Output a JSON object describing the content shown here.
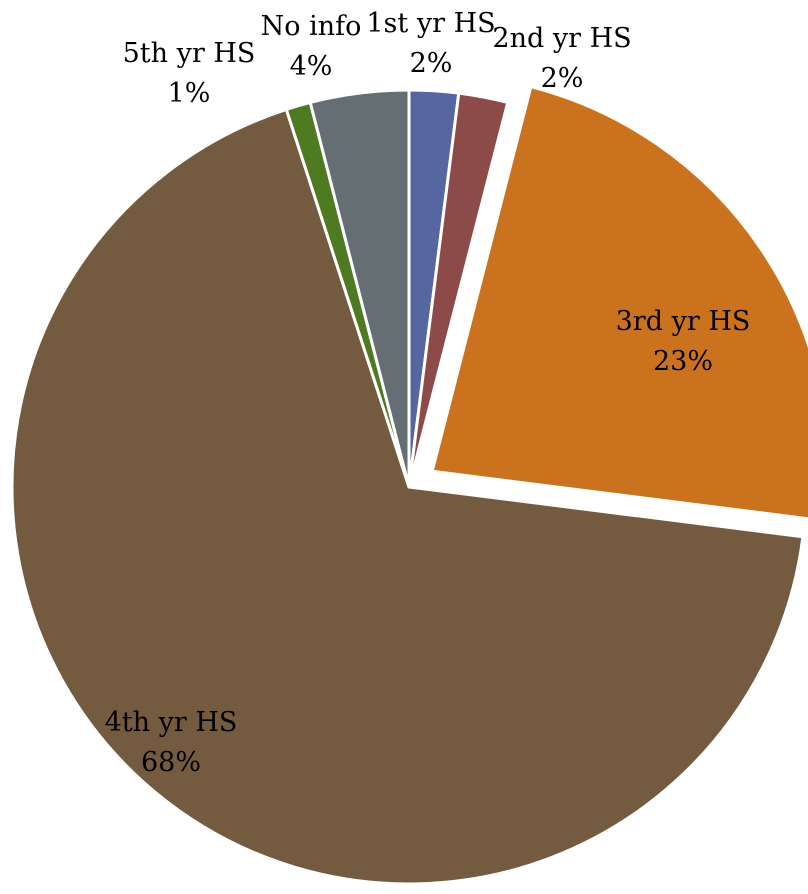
{
  "chart_data": {
    "type": "pie",
    "title": "",
    "slices": [
      {
        "label": "1st yr HS",
        "value": 2,
        "display": "2%",
        "color": "#5566A1",
        "exploded": false
      },
      {
        "label": "2nd yr HS",
        "value": 2,
        "display": "2%",
        "color": "#8C4A48",
        "exploded": false
      },
      {
        "label": "3rd yr HS",
        "value": 23,
        "display": "23%",
        "color": "#CB721E",
        "exploded": true
      },
      {
        "label": "4th yr HS",
        "value": 68,
        "display": "68%",
        "color": "#745A3F",
        "exploded": false
      },
      {
        "label": "5th yr HS",
        "value": 1,
        "display": "1%",
        "color": "#4E7A21",
        "exploded": false
      },
      {
        "label": "No info",
        "value": 4,
        "display": "4%",
        "color": "#646E73",
        "exploded": false
      }
    ],
    "legend": "none",
    "data_labels": "category name and percentage"
  }
}
